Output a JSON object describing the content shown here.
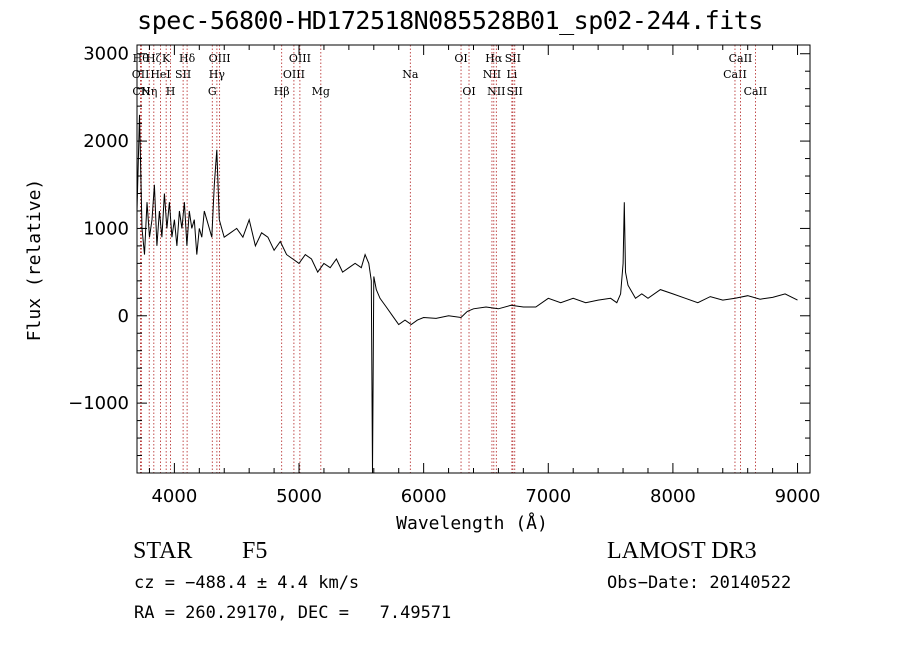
{
  "chart_data": {
    "type": "line",
    "title": "spec-56800-HD172518N085528B01_sp02-244.fits",
    "xlabel": "Wavelength (Å)",
    "ylabel": "Flux (relative)",
    "xlim": [
      3700,
      9100
    ],
    "ylim": [
      -1800,
      3100
    ],
    "x_ticks": [
      4000,
      5000,
      6000,
      7000,
      8000,
      9000
    ],
    "y_ticks": [
      -1000,
      0,
      1000,
      2000,
      3000
    ],
    "y_tick_labels": [
      "−1000",
      "0",
      "1000",
      "2000",
      "3000"
    ],
    "grid": false,
    "series": [
      {
        "x": [
          3700,
          3720,
          3740,
          3760,
          3780,
          3800,
          3820,
          3840,
          3860,
          3880,
          3900,
          3920,
          3940,
          3960,
          3980,
          4000,
          4020,
          4040,
          4060,
          4080,
          4100,
          4120,
          4140,
          4160,
          4180,
          4200,
          4220,
          4240,
          4260,
          4280,
          4300,
          4320,
          4340,
          4360,
          4380,
          4400,
          4450,
          4500,
          4550,
          4600,
          4650,
          4700,
          4750,
          4800,
          4850,
          4900,
          4950,
          5000,
          5050,
          5100,
          5150,
          5200,
          5250,
          5300,
          5350,
          5400,
          5450,
          5500,
          5530,
          5560,
          5580,
          5590,
          5600,
          5620,
          5650,
          5700,
          5750,
          5800,
          5850,
          5900,
          5950,
          6000,
          6100,
          6200,
          6300,
          6350,
          6400,
          6500,
          6600,
          6700,
          6800,
          6900,
          7000,
          7100,
          7200,
          7300,
          7400,
          7500,
          7550,
          7580,
          7600,
          7610,
          7620,
          7640,
          7700,
          7750,
          7800,
          7900,
          8000,
          8100,
          8200,
          8300,
          8400,
          8500,
          8600,
          8700,
          8800,
          8900,
          9000
        ],
        "y": [
          1200,
          2300,
          1000,
          700,
          1300,
          900,
          1100,
          1500,
          800,
          1200,
          900,
          1400,
          1000,
          1300,
          900,
          1100,
          800,
          1200,
          1000,
          1300,
          800,
          1200,
          1000,
          1100,
          700,
          1000,
          900,
          1200,
          1100,
          1000,
          900,
          1500,
          1900,
          1100,
          1000,
          900,
          950,
          1000,
          900,
          1100,
          800,
          950,
          900,
          750,
          850,
          700,
          650,
          600,
          700,
          650,
          500,
          600,
          550,
          650,
          500,
          550,
          600,
          550,
          700,
          600,
          400,
          -1800,
          450,
          300,
          200,
          100,
          0,
          -100,
          -50,
          -100,
          -50,
          -20,
          -30,
          0,
          -20,
          50,
          80,
          100,
          80,
          120,
          100,
          100,
          200,
          150,
          200,
          150,
          180,
          200,
          150,
          250,
          600,
          1300,
          500,
          350,
          200,
          250,
          200,
          300,
          250,
          200,
          150,
          220,
          180,
          200,
          230,
          190,
          210,
          250,
          180
        ]
      }
    ],
    "lines": [
      {
        "x": 3730,
        "label": "Hθ",
        "row": 1
      },
      {
        "x": 3729,
        "label": "OII",
        "row": 2
      },
      {
        "x": 3735,
        "label": "CN",
        "row": 3
      },
      {
        "x": 3798,
        "label": "Hη",
        "row": 3
      },
      {
        "x": 3835,
        "label": "Hζ",
        "row": 1
      },
      {
        "x": 3889,
        "label": "HeI",
        "row": 2
      },
      {
        "x": 3934,
        "label": "K",
        "row": 1
      },
      {
        "x": 3969,
        "label": "H",
        "row": 3
      },
      {
        "x": 4070,
        "label": "SII",
        "row": 2
      },
      {
        "x": 4102,
        "label": "Hδ",
        "row": 1
      },
      {
        "x": 4304,
        "label": "G",
        "row": 3
      },
      {
        "x": 4341,
        "label": "Hγ",
        "row": 2
      },
      {
        "x": 4363,
        "label": "OIII",
        "row": 1
      },
      {
        "x": 4861,
        "label": "Hβ",
        "row": 3
      },
      {
        "x": 4959,
        "label": "OIII",
        "row": 2
      },
      {
        "x": 5007,
        "label": "OIII",
        "row": 1
      },
      {
        "x": 5175,
        "label": "Mg",
        "row": 3
      },
      {
        "x": 5893,
        "label": "Na",
        "row": 2
      },
      {
        "x": 6300,
        "label": "OI",
        "row": 1
      },
      {
        "x": 6364,
        "label": "OI",
        "row": 3
      },
      {
        "x": 6548,
        "label": "NII",
        "row": 2
      },
      {
        "x": 6563,
        "label": "Hα",
        "row": 1
      },
      {
        "x": 6583,
        "label": "NII",
        "row": 3
      },
      {
        "x": 6708,
        "label": "Li",
        "row": 2
      },
      {
        "x": 6716,
        "label": "SII",
        "row": 1
      },
      {
        "x": 6731,
        "label": "SII",
        "row": 3
      },
      {
        "x": 8498,
        "label": "CaII",
        "row": 2
      },
      {
        "x": 8542,
        "label": "CaII",
        "row": 1
      },
      {
        "x": 8662,
        "label": "CaII",
        "row": 3
      }
    ]
  },
  "info": {
    "class": "STAR",
    "subclass": "F5",
    "survey": "LAMOST DR3",
    "cz": "cz = −488.4 ± 4.4 km/s",
    "obs_date": "Obs−Date: 20140522",
    "radec": "RA = 260.29170, DEC =   7.49571"
  }
}
